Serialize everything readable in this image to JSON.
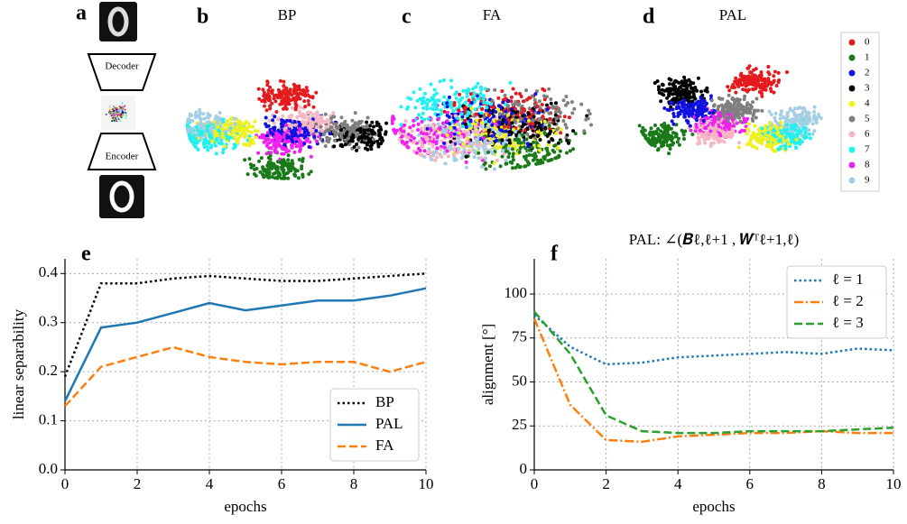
{
  "figure": {
    "panel_a": {
      "label": "a",
      "decoder": "Decoder",
      "encoder": "Encoder"
    },
    "embeddings": [
      {
        "label": "b",
        "title": "BP"
      },
      {
        "label": "c",
        "title": "FA"
      },
      {
        "label": "d",
        "title": "PAL"
      }
    ],
    "digit_legend": [
      {
        "name": "0",
        "color": "#e41a1c"
      },
      {
        "name": "1",
        "color": "#1a7a1a"
      },
      {
        "name": "2",
        "color": "#1010e0"
      },
      {
        "name": "3",
        "color": "#000000"
      },
      {
        "name": "4",
        "color": "#f0f020"
      },
      {
        "name": "5",
        "color": "#7f7f7f"
      },
      {
        "name": "6",
        "color": "#f7b6c2"
      },
      {
        "name": "7",
        "color": "#20f0f0"
      },
      {
        "name": "8",
        "color": "#f020f0"
      },
      {
        "name": "9",
        "color": "#a6cee3"
      }
    ]
  },
  "chart_data": [
    {
      "type": "line",
      "label": "e",
      "xlabel": "epochs",
      "ylabel": "linear separability",
      "x": [
        0,
        1,
        2,
        3,
        4,
        5,
        6,
        7,
        8,
        9,
        10
      ],
      "xlim": [
        0,
        10
      ],
      "xticks": [
        0,
        2,
        4,
        6,
        8,
        10
      ],
      "ylim": [
        0,
        0.43
      ],
      "yticks": [
        {
          "value": 0,
          "label": "0.0"
        },
        0.1,
        0.2,
        0.3,
        0.4
      ],
      "grid": true,
      "legend": "lower right",
      "series": [
        {
          "name": "BP",
          "color": "#000000",
          "style": "dotted",
          "values": [
            0.19,
            0.38,
            0.38,
            0.39,
            0.395,
            0.39,
            0.385,
            0.385,
            0.39,
            0.395,
            0.4
          ]
        },
        {
          "name": "PAL",
          "color": "#1f77b4",
          "style": "solid",
          "values": [
            0.14,
            0.29,
            0.3,
            0.32,
            0.34,
            0.325,
            0.335,
            0.345,
            0.345,
            0.355,
            0.37
          ]
        },
        {
          "name": "FA",
          "color": "#ff7f0e",
          "style": "dashed",
          "values": [
            0.13,
            0.21,
            0.23,
            0.25,
            0.23,
            0.22,
            0.215,
            0.22,
            0.22,
            0.2,
            0.22
          ]
        }
      ]
    },
    {
      "type": "line",
      "label": "f",
      "title": "PAL: ∠(𝑩ℓ,ℓ+1 , 𝑾ᵀℓ+1,ℓ)",
      "xlabel": "epochs",
      "ylabel": "alignment [°]",
      "x": [
        0,
        1,
        2,
        3,
        4,
        5,
        6,
        7,
        8,
        9,
        10
      ],
      "xlim": [
        0,
        10
      ],
      "xticks": [
        0,
        2,
        4,
        6,
        8,
        10
      ],
      "ylim": [
        0,
        120
      ],
      "yticks": [
        0,
        25,
        50,
        75,
        100
      ],
      "grid": true,
      "legend": "upper right",
      "series": [
        {
          "name": "ℓ = 1",
          "color": "#1f77b4",
          "style": "dotted",
          "values": [
            88,
            70,
            60,
            61,
            64,
            65,
            66,
            67,
            66,
            69,
            68
          ]
        },
        {
          "name": "ℓ = 2",
          "color": "#ff7f0e",
          "style": "dashdot",
          "values": [
            86,
            37,
            17,
            16,
            19,
            20,
            21,
            21,
            22,
            21,
            21
          ]
        },
        {
          "name": "ℓ = 3",
          "color": "#2ca02c",
          "style": "dashed",
          "values": [
            90,
            66,
            31,
            22,
            21,
            21,
            22,
            22,
            22,
            23,
            24
          ]
        }
      ]
    }
  ]
}
